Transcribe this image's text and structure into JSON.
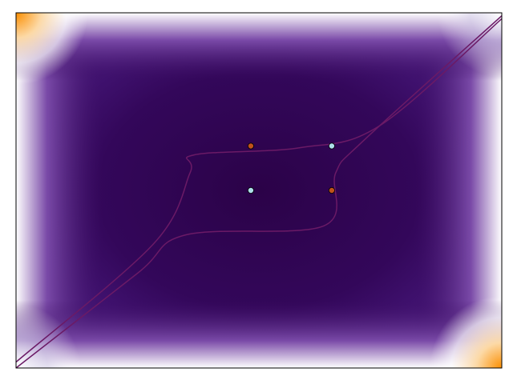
{
  "chart_data": {
    "type": "heatmap",
    "title": "",
    "xlabel": "",
    "ylabel": "",
    "xlim": [
      -3,
      3
    ],
    "ylim": [
      -3,
      3
    ],
    "axes_visible": false,
    "grid": false,
    "legend": "none",
    "colormap": [
      "#fb8e00",
      "#ffffff",
      "#6a2f9c",
      "#2e034f"
    ],
    "contour_color": "#6b1a66",
    "contours": [
      {
        "name": "",
        "points": [
          [
            -3.0,
            -3.0
          ],
          [
            -1.5,
            -1.4
          ],
          [
            -0.9,
            -0.75
          ],
          [
            0.8,
            -0.6
          ],
          [
            0.95,
            0.3
          ],
          [
            1.3,
            0.85
          ],
          [
            3.0,
            2.95
          ]
        ]
      },
      {
        "name": "",
        "points": [
          [
            -3.0,
            -2.9
          ],
          [
            -1.3,
            -0.9
          ],
          [
            -0.85,
            0.3
          ],
          [
            -0.8,
            0.6
          ],
          [
            0.5,
            0.72
          ],
          [
            1.5,
            1.1
          ],
          [
            3.0,
            2.9
          ]
        ]
      }
    ],
    "points": [
      {
        "x": -0.1,
        "y": 0.75,
        "color": "#c0531a"
      },
      {
        "x": 0.9,
        "y": 0.75,
        "color": "#aee0ea"
      },
      {
        "x": -0.1,
        "y": 0.0,
        "color": "#aee0ea"
      },
      {
        "x": 0.9,
        "y": 0.0,
        "color": "#c0531a"
      }
    ]
  }
}
